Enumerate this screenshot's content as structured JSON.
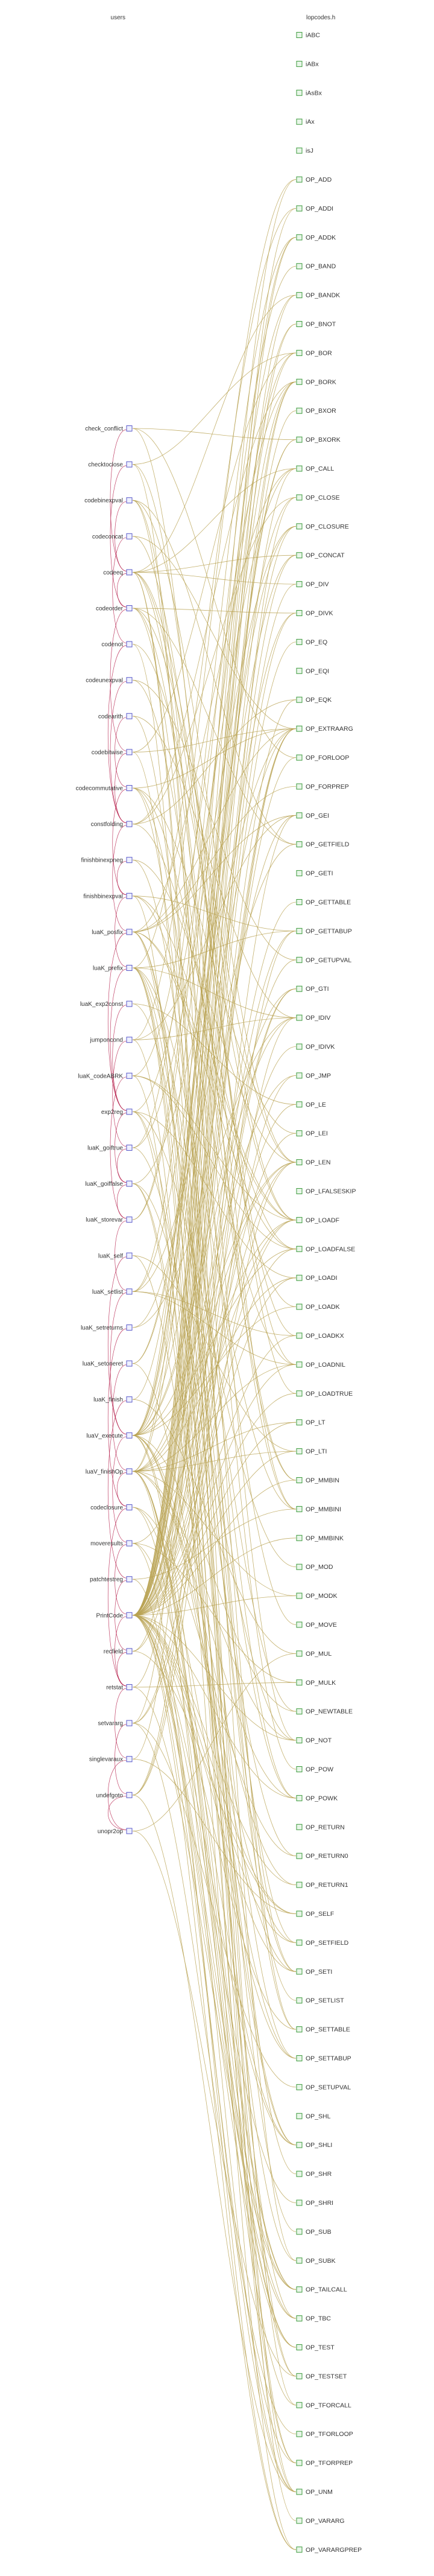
{
  "columns": {
    "left_title": "users",
    "right_title": "lopcodes.h"
  },
  "colors": {
    "edge": "#b8a252",
    "call_arc": "#b01040",
    "left_marker": "#5a5ac8",
    "right_marker": "#3c9a3c"
  },
  "left_nodes": [
    "check_conflict",
    "checktoclose",
    "codebinexpval",
    "codeconcat",
    "codeeq",
    "codeorder",
    "codenot",
    "codeunexpval",
    "codearith",
    "codebitwise",
    "codecommutative",
    "constfolding",
    "finishbinexpneg",
    "finishbinexpval",
    "luaK_posfix",
    "luaK_prefix",
    "luaK_exp2const",
    "jumponcond",
    "luaK_codeABRK",
    "exp2reg",
    "luaK_goiftrue",
    "luaK_goiffalse",
    "luaK_storevar",
    "luaK_self",
    "luaK_setlist",
    "luaK_setreturns",
    "luaK_setoneret",
    "luaK_finish",
    "luaV_execute",
    "luaV_finishOp",
    "codeclosure",
    "moveresults",
    "patchtestreg",
    "PrintCode",
    "recfield",
    "retstat",
    "setvararg",
    "singlevaraux",
    "undefgoto",
    "unopr2op"
  ],
  "right_nodes": [
    "iABC",
    "iABx",
    "iAsBx",
    "iAx",
    "isJ",
    "OP_ADD",
    "OP_ADDI",
    "OP_ADDK",
    "OP_BAND",
    "OP_BANDK",
    "OP_BNOT",
    "OP_BOR",
    "OP_BORK",
    "OP_BXOR",
    "OP_BXORK",
    "OP_CALL",
    "OP_CLOSE",
    "OP_CLOSURE",
    "OP_CONCAT",
    "OP_DIV",
    "OP_DIVK",
    "OP_EQ",
    "OP_EQI",
    "OP_EQK",
    "OP_EXTRAARG",
    "OP_FORLOOP",
    "OP_FORPREP",
    "OP_GEI",
    "OP_GETFIELD",
    "OP_GETI",
    "OP_GETTABLE",
    "OP_GETTABUP",
    "OP_GETUPVAL",
    "OP_GTI",
    "OP_IDIV",
    "OP_IDIVK",
    "OP_JMP",
    "OP_LE",
    "OP_LEI",
    "OP_LEN",
    "OP_LFALSESKIP",
    "OP_LOADF",
    "OP_LOADFALSE",
    "OP_LOADI",
    "OP_LOADK",
    "OP_LOADKX",
    "OP_LOADNIL",
    "OP_LOADTRUE",
    "OP_LT",
    "OP_LTI",
    "OP_MMBIN",
    "OP_MMBINI",
    "OP_MMBINK",
    "OP_MOD",
    "OP_MODK",
    "OP_MOVE",
    "OP_MUL",
    "OP_MULK",
    "OP_NEWTABLE",
    "OP_NOT",
    "OP_POW",
    "OP_POWK",
    "OP_RETURN",
    "OP_RETURN0",
    "OP_RETURN1",
    "OP_SELF",
    "OP_SETFIELD",
    "OP_SETI",
    "OP_SETLIST",
    "OP_SETTABLE",
    "OP_SETTABUP",
    "OP_SETUPVAL",
    "OP_SHL",
    "OP_SHLI",
    "OP_SHR",
    "OP_SHRI",
    "OP_SUB",
    "OP_SUBK",
    "OP_TAILCALL",
    "OP_TBC",
    "OP_TEST",
    "OP_TESTSET",
    "OP_TFORCALL",
    "OP_TFORLOOP",
    "OP_TFORPREP",
    "OP_UNM",
    "OP_VARARG",
    "OP_VARARGPREP"
  ]
}
